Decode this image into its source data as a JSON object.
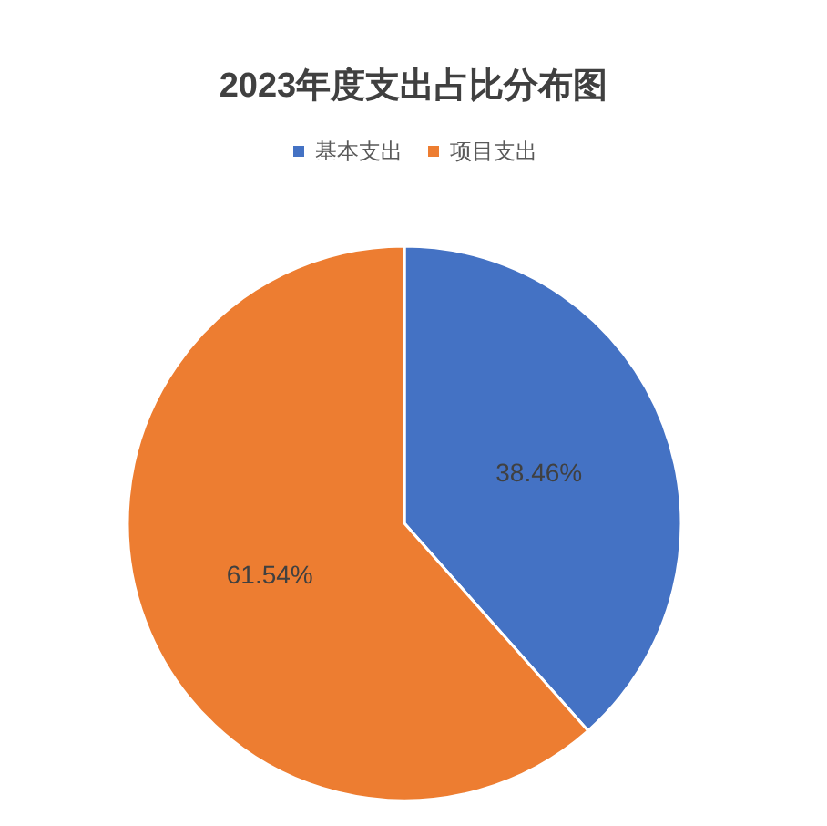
{
  "chart_data": {
    "type": "pie",
    "title": "2023年度支出占比分布图",
    "categories": [
      "基本支出",
      "项目支出"
    ],
    "values": [
      38.46,
      61.54
    ],
    "colors": [
      "#4472c4",
      "#ed7d31"
    ],
    "value_labels": [
      "38.46%",
      "61.54%"
    ],
    "legend": "top"
  }
}
